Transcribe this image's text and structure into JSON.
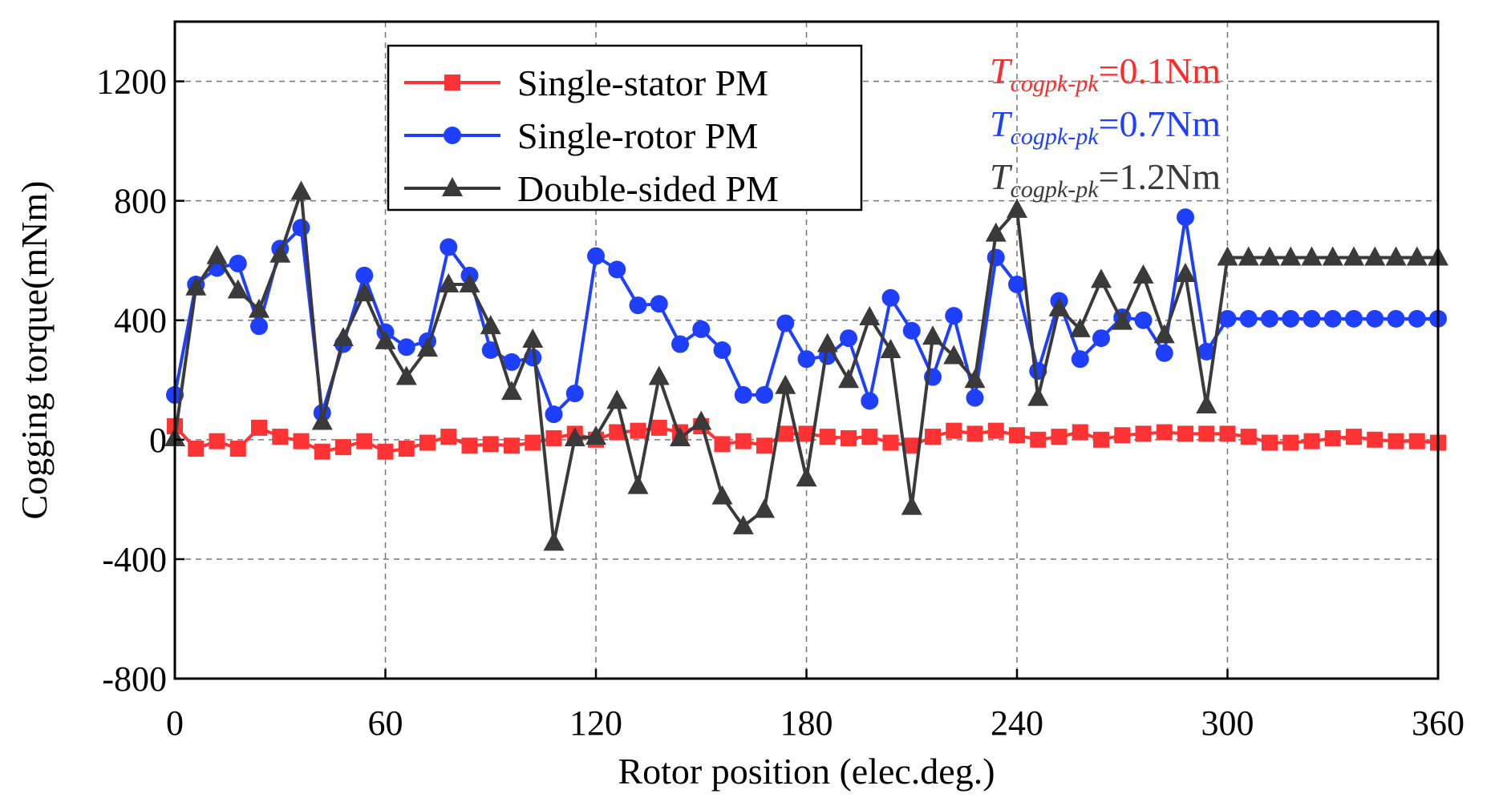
{
  "chart_data": {
    "type": "line",
    "title": "",
    "xlabel": "Rotor position (elec.deg.)",
    "ylabel": "Cogging torque(mNm)",
    "xlim": [
      0,
      360
    ],
    "ylim": [
      -800,
      1400
    ],
    "xticks": [
      0,
      60,
      120,
      180,
      240,
      300,
      360
    ],
    "yticks": [
      -800,
      -400,
      0,
      400,
      800,
      1200
    ],
    "xtick_labels": [
      "0",
      "60",
      "120",
      "180",
      "240",
      "300",
      "360"
    ],
    "ytick_labels": [
      "-800",
      "-400",
      "0",
      "400",
      "800",
      "1200"
    ],
    "grid": true,
    "legend_position": "top-left",
    "x": [
      0,
      6,
      12,
      18,
      24,
      30,
      36,
      42,
      48,
      54,
      60,
      66,
      72,
      78,
      84,
      90,
      96,
      102,
      108,
      114,
      120,
      126,
      132,
      138,
      144,
      150,
      156,
      162,
      168,
      174,
      180,
      186,
      192,
      198,
      204,
      210,
      216,
      222,
      228,
      234,
      240,
      246,
      252,
      258,
      264,
      270,
      276,
      282,
      288,
      294,
      300,
      306,
      312,
      318,
      324,
      330,
      336,
      342,
      348,
      354,
      360
    ],
    "series": [
      {
        "name": "Single-stator PM",
        "color": "#ff3333",
        "marker": "square",
        "values": [
          45,
          -30,
          -5,
          -30,
          40,
          10,
          -5,
          -40,
          -25,
          -5,
          -40,
          -30,
          -10,
          10,
          -20,
          -15,
          -20,
          -10,
          5,
          20,
          0,
          25,
          30,
          40,
          25,
          45,
          -15,
          -5,
          -20,
          20,
          20,
          10,
          5,
          10,
          -10,
          -20,
          10,
          30,
          20,
          30,
          15,
          0,
          10,
          25,
          0,
          15,
          20,
          25,
          20,
          20,
          20,
          10,
          -10,
          -10,
          -5,
          5,
          10,
          0,
          -5,
          -5,
          -10
        ]
      },
      {
        "name": "Single-rotor PM",
        "color": "#1f3fff",
        "marker": "circle",
        "values": [
          150,
          520,
          575,
          590,
          380,
          640,
          710,
          90,
          320,
          550,
          360,
          310,
          330,
          645,
          550,
          300,
          260,
          275,
          85,
          155,
          615,
          570,
          450,
          455,
          320,
          370,
          300,
          150,
          150,
          390,
          270,
          280,
          340,
          130,
          475,
          365,
          210,
          415,
          140,
          610,
          520,
          230,
          465,
          270,
          340,
          410,
          400,
          290,
          745,
          295,
          405,
          405,
          405,
          405,
          405,
          405,
          405,
          405,
          405,
          405,
          405
        ]
      },
      {
        "name": "Double-sided PM",
        "color": "#3a3a3a",
        "marker": "triangle",
        "values": [
          5,
          510,
          615,
          500,
          435,
          620,
          830,
          60,
          340,
          490,
          330,
          210,
          305,
          520,
          520,
          380,
          160,
          335,
          -345,
          5,
          10,
          130,
          -155,
          210,
          5,
          60,
          -190,
          -290,
          -235,
          180,
          -130,
          320,
          200,
          410,
          300,
          -225,
          345,
          280,
          200,
          690,
          770,
          140,
          440,
          370,
          535,
          395,
          550,
          350,
          555,
          115,
          610,
          610,
          610,
          610,
          610,
          610,
          610,
          610,
          610,
          610,
          610
        ]
      }
    ],
    "annotations": [
      {
        "sym": "T",
        "sub": "cogpk-pk",
        "value": "=0.1Nm",
        "color": "#ff2a2a"
      },
      {
        "sym": "T",
        "sub": "cogpk-pk",
        "value": "=0.7Nm",
        "color": "#1f3fff"
      },
      {
        "sym": "T",
        "sub": "cogpk-pk",
        "value": "=1.2Nm",
        "color": "#3a3a3a"
      }
    ]
  }
}
